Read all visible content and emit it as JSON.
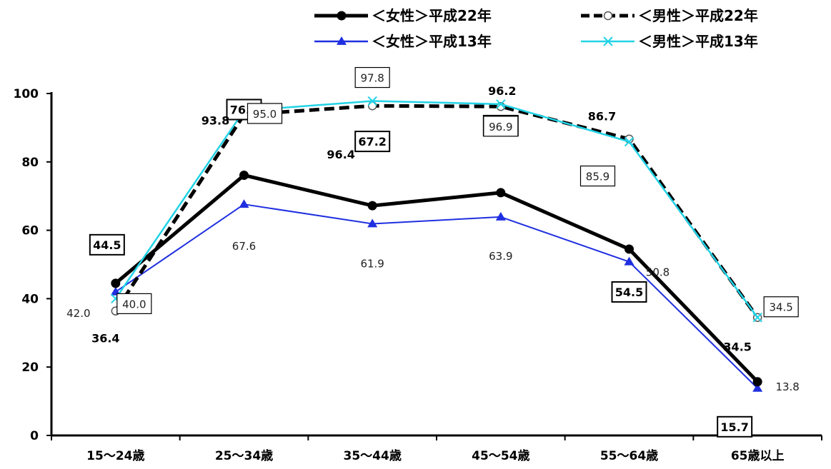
{
  "chart_data": {
    "type": "line",
    "categories": [
      "15〜24歳",
      "25〜34歳",
      "35〜44歳",
      "45〜54歳",
      "55〜64歳",
      "65歳以上"
    ],
    "ylim": [
      0,
      100
    ],
    "yticks": [
      0,
      20,
      40,
      60,
      80,
      100
    ],
    "grid": false,
    "legend_position": "top-right",
    "series": [
      {
        "name": "＜女性＞平成22年",
        "values": [
          44.5,
          76.1,
          67.2,
          71.0,
          54.5,
          15.7
        ],
        "color": "#000000",
        "style": "solid",
        "marker": "filled-circle"
      },
      {
        "name": "＜男性＞平成22年",
        "values": [
          36.4,
          93.8,
          96.4,
          96.2,
          86.7,
          34.5
        ],
        "color": "#000000",
        "style": "dashed",
        "marker": "open-circle"
      },
      {
        "name": "＜女性＞平成13年",
        "values": [
          42.0,
          67.6,
          61.9,
          63.9,
          50.8,
          13.8
        ],
        "color": "#1f2fe0",
        "style": "solid",
        "marker": "triangle"
      },
      {
        "name": "＜男性＞平成13年",
        "values": [
          40.0,
          95.0,
          97.8,
          96.9,
          85.9,
          34.5
        ],
        "color": "#22d3e6",
        "style": "solid",
        "marker": "x"
      }
    ]
  }
}
